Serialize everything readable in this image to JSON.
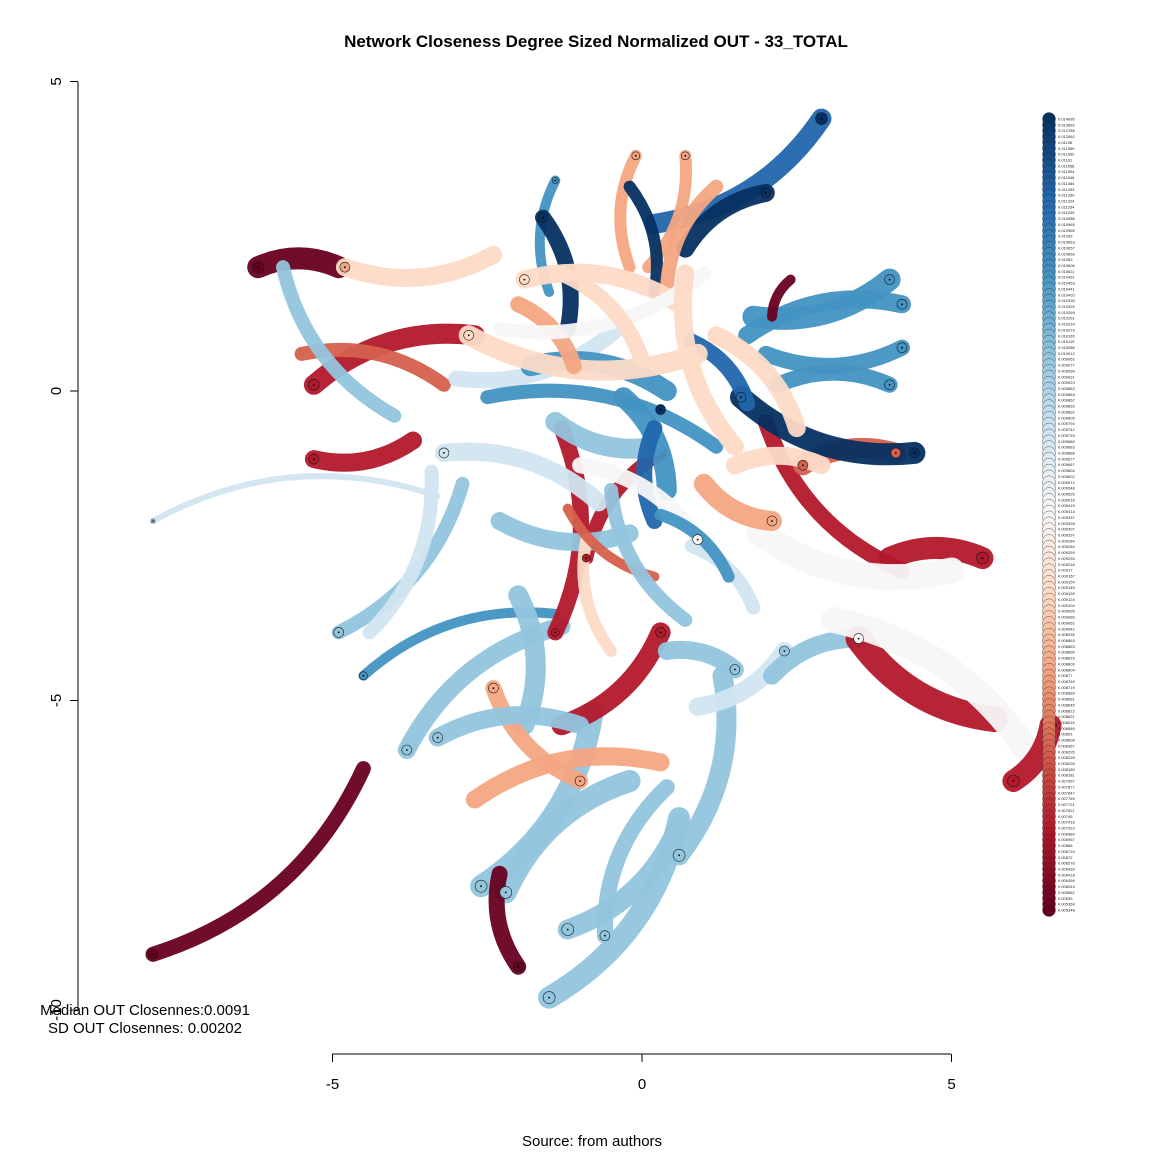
{
  "chart_data": {
    "type": "network",
    "title": "Network Closeness Degree Sized Normalized OUT - 33_TOTAL",
    "caption": "Source: from authors",
    "stats": {
      "median_line": "Median OUT Closennes:0.0091",
      "sd_line": "SD OUT Closennes: 0.00202"
    },
    "x_axis": {
      "ticks": [
        -5,
        0,
        5
      ],
      "tick_labels": [
        "-5",
        "0",
        "5"
      ],
      "range": [
        -5,
        5
      ]
    },
    "y_axis": {
      "ticks": [
        5,
        0,
        -5,
        -10
      ],
      "tick_labels": [
        "5",
        "0",
        "-5",
        "-10"
      ],
      "range": [
        -10,
        5
      ]
    },
    "palette": [
      "#053061",
      "#2166ac",
      "#4393c3",
      "#92c5de",
      "#d1e5f0",
      "#f7f7f7",
      "#fddbc7",
      "#f4a582",
      "#d6604d",
      "#b2182b",
      "#67001f"
    ],
    "legend_values": [
      "0.014095",
      "0.013662",
      "0.012766",
      "0.012062",
      "0.01196",
      "0.011959",
      "0.011632",
      "0.01161",
      "0.011658",
      "0.011594",
      "0.011546",
      "0.011484",
      "0.011393",
      "0.011339",
      "0.011324",
      "0.011254",
      "0.011049",
      "0.010986",
      "0.010965",
      "0.010966",
      "0.01095",
      "0.010663",
      "0.010657",
      "0.010659",
      "0.01063",
      "0.010606",
      "0.010611",
      "0.010461",
      "0.010453",
      "0.010441",
      "0.010402",
      "0.010339",
      "0.010325",
      "0.010269",
      "0.010251",
      "0.010224",
      "0.010223",
      "0.010165",
      "0.010119",
      "0.010086",
      "0.010012",
      "0.009952",
      "0.009977",
      "0.009934",
      "0.009931",
      "0.009923",
      "0.009883",
      "0.009883",
      "0.009862",
      "0.009833",
      "0.009832",
      "0.009805",
      "0.009794",
      "0.009742",
      "0.009733",
      "0.009685",
      "0.009683",
      "0.009688",
      "0.009677",
      "0.009667",
      "0.009604",
      "0.009602",
      "0.009572",
      "0.009548",
      "0.009525",
      "0.009516",
      "0.009415",
      "0.009414",
      "0.009337",
      "0.009328",
      "0.009307",
      "0.009297",
      "0.009284",
      "0.009284",
      "0.009259",
      "0.009239",
      "0.009216",
      "0.00917",
      "0.009167",
      "0.009154",
      "0.009145",
      "0.009128",
      "0.009124",
      "0.009104",
      "0.009095",
      "0.009089",
      "0.009062",
      "0.009042",
      "0.008935",
      "0.008863",
      "0.008863",
      "0.008856",
      "0.008815",
      "0.008809",
      "0.008804",
      "0.00877",
      "0.008769",
      "0.008719",
      "0.008689",
      "0.008681",
      "0.008645",
      "0.008622",
      "0.008621",
      "0.008616",
      "0.008589",
      "0.00851",
      "0.008508",
      "0.008367",
      "0.008295",
      "0.008228",
      "0.008226",
      "0.008189",
      "0.008181",
      "0.007967",
      "0.007877",
      "0.007847",
      "0.007769",
      "0.007721",
      "0.007521",
      "0.00745",
      "0.007418",
      "0.007322",
      "0.006984",
      "0.006967",
      "0.00686",
      "0.006724",
      "0.00672",
      "0.006578",
      "0.006439",
      "0.006418",
      "0.006399",
      "0.006044",
      "0.005962",
      "0.00539",
      "0.005369",
      "0.005348"
    ],
    "edges": [
      {
        "x1": -7.9,
        "y1": -9.1,
        "x2": -4.5,
        "y2": -6.1,
        "c": 10,
        "w": 15
      },
      {
        "x1": -6.2,
        "y1": 2.0,
        "x2": -4.9,
        "y2": 2.0,
        "c": 10,
        "w": 22
      },
      {
        "x1": -4.8,
        "y1": 2.0,
        "x2": -2.4,
        "y2": 2.2,
        "c": 6,
        "w": 18
      },
      {
        "x1": -5.3,
        "y1": 0.1,
        "x2": -2.7,
        "y2": 0.9,
        "c": 9,
        "w": 20
      },
      {
        "x1": -5.3,
        "y1": -1.1,
        "x2": -3.7,
        "y2": -0.8,
        "c": 9,
        "w": 18
      },
      {
        "x1": -5.5,
        "y1": 0.6,
        "x2": -3.2,
        "y2": 0.1,
        "c": 8,
        "w": 14
      },
      {
        "x1": -5.8,
        "y1": 2.0,
        "x2": -4.0,
        "y2": -0.4,
        "c": 3,
        "w": 14
      },
      {
        "x1": -7.9,
        "y1": -2.1,
        "x2": -3.3,
        "y2": -1.7,
        "c": 4,
        "w": 6
      },
      {
        "x1": -4.9,
        "y1": -3.9,
        "x2": -2.9,
        "y2": -1.5,
        "c": 3,
        "w": 14
      },
      {
        "x1": -4.5,
        "y1": -4.6,
        "x2": -1.4,
        "y2": -3.6,
        "c": 2,
        "w": 10
      },
      {
        "x1": -4.4,
        "y1": -3.9,
        "x2": -3.4,
        "y2": -1.3,
        "c": 4,
        "w": 14
      },
      {
        "x1": -3.8,
        "y1": -5.8,
        "x2": -1.3,
        "y2": -3.8,
        "c": 3,
        "w": 18
      },
      {
        "x1": -2.6,
        "y1": -8.0,
        "x2": -0.8,
        "y2": -5.2,
        "c": 3,
        "w": 22
      },
      {
        "x1": -2.2,
        "y1": -8.1,
        "x2": -0.2,
        "y2": -6.3,
        "c": 3,
        "w": 22
      },
      {
        "x1": -1.5,
        "y1": -9.8,
        "x2": 0.6,
        "y2": -6.9,
        "c": 3,
        "w": 22
      },
      {
        "x1": -2.0,
        "y1": -9.3,
        "x2": -2.3,
        "y2": -7.8,
        "c": 10,
        "w": 16
      },
      {
        "x1": -1.2,
        "y1": -8.7,
        "x2": 0.6,
        "y2": -7.0,
        "c": 3,
        "w": 20
      },
      {
        "x1": -0.6,
        "y1": -8.8,
        "x2": 0.4,
        "y2": -6.4,
        "c": 3,
        "w": 16
      },
      {
        "x1": 0.6,
        "y1": -7.5,
        "x2": 1.3,
        "y2": -4.6,
        "c": 3,
        "w": 20
      },
      {
        "x1": -2.7,
        "y1": -6.6,
        "x2": 0.3,
        "y2": -6.0,
        "c": 7,
        "w": 18
      },
      {
        "x1": -1.4,
        "y1": -3.9,
        "x2": -1.3,
        "y2": -0.6,
        "c": 9,
        "w": 16
      },
      {
        "x1": -0.9,
        "y1": -2.7,
        "x2": 0.3,
        "y2": -1.0,
        "c": 9,
        "w": 14
      },
      {
        "x1": -1.3,
        "y1": -5.4,
        "x2": 0.3,
        "y2": -3.9,
        "c": 9,
        "w": 20
      },
      {
        "x1": 0.4,
        "y1": -4.2,
        "x2": 1.5,
        "y2": -4.5,
        "c": 3,
        "w": 18
      },
      {
        "x1": 0.9,
        "y1": -5.1,
        "x2": 2.3,
        "y2": -4.2,
        "c": 4,
        "w": 18
      },
      {
        "x1": 2.1,
        "y1": -4.6,
        "x2": 3.5,
        "y2": -4.0,
        "c": 3,
        "w": 18
      },
      {
        "x1": 3.5,
        "y1": -4.0,
        "x2": 5.7,
        "y2": -5.3,
        "c": 9,
        "w": 26
      },
      {
        "x1": 3.1,
        "y1": -3.7,
        "x2": 6.4,
        "y2": -6.1,
        "c": 5,
        "w": 26
      },
      {
        "x1": 6.0,
        "y1": -6.3,
        "x2": 6.6,
        "y2": -5.4,
        "c": 9,
        "w": 22
      },
      {
        "x1": 4.0,
        "y1": -2.7,
        "x2": 5.5,
        "y2": -2.7,
        "c": 9,
        "w": 22
      },
      {
        "x1": 2.0,
        "y1": -0.5,
        "x2": 4.2,
        "y2": -2.9,
        "c": 9,
        "w": 16
      },
      {
        "x1": 2.6,
        "y1": -1.2,
        "x2": 4.1,
        "y2": -1.0,
        "c": 8,
        "w": 20
      },
      {
        "x1": 1.9,
        "y1": -2.3,
        "x2": 5.0,
        "y2": -2.9,
        "c": 5,
        "w": 26
      },
      {
        "x1": 2.9,
        "y1": 4.4,
        "x2": 0.2,
        "y2": 2.7,
        "c": 1,
        "w": 20
      },
      {
        "x1": 2.0,
        "y1": 3.2,
        "x2": 0.7,
        "y2": 2.3,
        "c": 0,
        "w": 18
      },
      {
        "x1": 0.7,
        "y1": 3.8,
        "x2": 0.1,
        "y2": 2.0,
        "c": 7,
        "w": 12
      },
      {
        "x1": -0.1,
        "y1": 3.8,
        "x2": -0.2,
        "y2": 2.0,
        "c": 7,
        "w": 12
      },
      {
        "x1": -0.2,
        "y1": 3.3,
        "x2": 0.2,
        "y2": 1.6,
        "c": 0,
        "w": 12
      },
      {
        "x1": -1.4,
        "y1": 3.4,
        "x2": -1.5,
        "y2": 1.6,
        "c": 2,
        "w": 10
      },
      {
        "x1": -1.6,
        "y1": 2.8,
        "x2": -1.2,
        "y2": 1.0,
        "c": 0,
        "w": 16
      },
      {
        "x1": 1.2,
        "y1": 3.3,
        "x2": 0.4,
        "y2": 1.6,
        "c": 7,
        "w": 14
      },
      {
        "x1": 4.0,
        "y1": 1.8,
        "x2": 1.8,
        "y2": 1.2,
        "c": 2,
        "w": 22
      },
      {
        "x1": 4.2,
        "y1": 1.4,
        "x2": 1.7,
        "y2": 0.9,
        "c": 2,
        "w": 18
      },
      {
        "x1": 4.2,
        "y1": 0.7,
        "x2": 2.0,
        "y2": 0.6,
        "c": 2,
        "w": 16
      },
      {
        "x1": 4.0,
        "y1": 0.1,
        "x2": 2.2,
        "y2": 0.1,
        "c": 2,
        "w": 16
      },
      {
        "x1": 4.4,
        "y1": -1.0,
        "x2": 1.6,
        "y2": -0.1,
        "c": 0,
        "w": 22
      },
      {
        "x1": 2.4,
        "y1": 1.8,
        "x2": 2.1,
        "y2": 1.2,
        "c": 10,
        "w": 10
      },
      {
        "x1": 0.8,
        "y1": 0.8,
        "x2": 1.7,
        "y2": -0.2,
        "c": 1,
        "w": 16
      },
      {
        "x1": -3.0,
        "y1": 0.2,
        "x2": -0.4,
        "y2": 1.0,
        "c": 4,
        "w": 16
      },
      {
        "x1": -1.8,
        "y1": 0.4,
        "x2": 0.4,
        "y2": 0.0,
        "c": 2,
        "w": 20
      },
      {
        "x1": -1.4,
        "y1": -0.5,
        "x2": 0.2,
        "y2": -0.9,
        "c": 3,
        "w": 20
      },
      {
        "x1": -0.3,
        "y1": -0.1,
        "x2": 0.4,
        "y2": -1.6,
        "c": 2,
        "w": 20
      },
      {
        "x1": 0.2,
        "y1": -0.6,
        "x2": 0.2,
        "y2": -2.1,
        "c": 1,
        "w": 16
      },
      {
        "x1": -2.5,
        "y1": -0.1,
        "x2": 1.2,
        "y2": -0.9,
        "c": 2,
        "w": 14
      },
      {
        "x1": -2.8,
        "y1": 0.9,
        "x2": 0.9,
        "y2": 0.6,
        "c": 6,
        "w": 20
      },
      {
        "x1": -1.9,
        "y1": 1.8,
        "x2": 0.6,
        "y2": 1.4,
        "c": 6,
        "w": 18
      },
      {
        "x1": -1.1,
        "y1": 0.4,
        "x2": -2.0,
        "y2": 1.4,
        "c": 7,
        "w": 16
      },
      {
        "x1": -3.2,
        "y1": -1.0,
        "x2": -0.7,
        "y2": -1.8,
        "c": 4,
        "w": 18
      },
      {
        "x1": -2.3,
        "y1": -2.1,
        "x2": -0.2,
        "y2": -2.3,
        "c": 3,
        "w": 18
      },
      {
        "x1": -1.0,
        "y1": -1.2,
        "x2": 0.9,
        "y2": -2.4,
        "c": 5,
        "w": 16
      },
      {
        "x1": 1.0,
        "y1": -1.5,
        "x2": 2.1,
        "y2": -2.1,
        "c": 7,
        "w": 20
      },
      {
        "x1": 1.5,
        "y1": -1.2,
        "x2": 2.9,
        "y2": -1.2,
        "c": 6,
        "w": 18
      },
      {
        "x1": -0.9,
        "y1": -2.4,
        "x2": -0.5,
        "y2": -4.2,
        "c": 6,
        "w": 12
      },
      {
        "x1": -2.0,
        "y1": -3.3,
        "x2": -1.9,
        "y2": -5.4,
        "c": 3,
        "w": 20
      },
      {
        "x1": -2.4,
        "y1": -4.8,
        "x2": -1.0,
        "y2": -6.3,
        "c": 7,
        "w": 16
      },
      {
        "x1": -3.3,
        "y1": -5.6,
        "x2": -1.0,
        "y2": -5.4,
        "c": 3,
        "w": 18
      },
      {
        "x1": -2.3,
        "y1": 1.0,
        "x2": 1.0,
        "y2": 1.9,
        "c": 5,
        "w": 14
      },
      {
        "x1": -1.3,
        "y1": 1.9,
        "x2": 0.0,
        "y2": 0.5,
        "c": 6,
        "w": 16
      },
      {
        "x1": 0.7,
        "y1": 1.9,
        "x2": 1.5,
        "y2": -0.9,
        "c": 6,
        "w": 18
      },
      {
        "x1": 1.2,
        "y1": 0.9,
        "x2": 2.5,
        "y2": -0.6,
        "c": 6,
        "w": 18
      },
      {
        "x1": -1.2,
        "y1": -1.9,
        "x2": 0.2,
        "y2": -3.0,
        "c": 8,
        "w": 10
      },
      {
        "x1": 0.8,
        "y1": -2.5,
        "x2": 1.8,
        "y2": -3.5,
        "c": 4,
        "w": 14
      },
      {
        "x1": -0.5,
        "y1": -1.6,
        "x2": 0.7,
        "y2": -3.7,
        "c": 3,
        "w": 14
      },
      {
        "x1": 0.3,
        "y1": -2.0,
        "x2": 1.4,
        "y2": -3.0,
        "c": 2,
        "w": 12
      }
    ],
    "nodes": [
      {
        "x": -7.9,
        "y": -9.1,
        "c": 10,
        "s": 10
      },
      {
        "x": -6.2,
        "y": 2.0,
        "c": 10,
        "s": 12
      },
      {
        "x": -4.8,
        "y": 2.0,
        "c": 7,
        "s": 10
      },
      {
        "x": -5.3,
        "y": 0.1,
        "c": 9,
        "s": 11
      },
      {
        "x": -5.3,
        "y": -1.1,
        "c": 9,
        "s": 10
      },
      {
        "x": -7.9,
        "y": -2.1,
        "c": 4,
        "s": 4
      },
      {
        "x": -4.9,
        "y": -3.9,
        "c": 3,
        "s": 10
      },
      {
        "x": -4.5,
        "y": -4.6,
        "c": 2,
        "s": 8
      },
      {
        "x": -3.8,
        "y": -5.8,
        "c": 3,
        "s": 10
      },
      {
        "x": -2.6,
        "y": -8.0,
        "c": 3,
        "s": 12
      },
      {
        "x": -2.2,
        "y": -8.1,
        "c": 3,
        "s": 12
      },
      {
        "x": -1.5,
        "y": -9.8,
        "c": 3,
        "s": 12
      },
      {
        "x": -2.0,
        "y": -9.3,
        "c": 10,
        "s": 10
      },
      {
        "x": -1.2,
        "y": -8.7,
        "c": 3,
        "s": 12
      },
      {
        "x": -0.6,
        "y": -8.8,
        "c": 3,
        "s": 10
      },
      {
        "x": 0.6,
        "y": -7.5,
        "c": 3,
        "s": 12
      },
      {
        "x": 2.9,
        "y": 4.4,
        "c": 0,
        "s": 12
      },
      {
        "x": 2.0,
        "y": 3.2,
        "c": 0,
        "s": 10
      },
      {
        "x": 0.7,
        "y": 3.8,
        "c": 7,
        "s": 8
      },
      {
        "x": -0.1,
        "y": 3.8,
        "c": 7,
        "s": 8
      },
      {
        "x": -1.4,
        "y": 3.4,
        "c": 2,
        "s": 6
      },
      {
        "x": -1.6,
        "y": 2.8,
        "c": 0,
        "s": 10
      },
      {
        "x": 4.0,
        "y": 1.8,
        "c": 2,
        "s": 10
      },
      {
        "x": 4.2,
        "y": 1.4,
        "c": 2,
        "s": 10
      },
      {
        "x": 4.2,
        "y": 0.7,
        "c": 2,
        "s": 10
      },
      {
        "x": 4.0,
        "y": 0.1,
        "c": 2,
        "s": 10
      },
      {
        "x": 4.4,
        "y": -1.0,
        "c": 0,
        "s": 10
      },
      {
        "x": 5.5,
        "y": -2.7,
        "c": 9,
        "s": 12
      },
      {
        "x": 6.6,
        "y": -5.4,
        "c": 9,
        "s": 12
      },
      {
        "x": 6.0,
        "y": -6.3,
        "c": 9,
        "s": 12
      },
      {
        "x": 3.5,
        "y": -4.0,
        "c": 5,
        "s": 10
      },
      {
        "x": 2.3,
        "y": -4.2,
        "c": 3,
        "s": 10
      },
      {
        "x": 1.5,
        "y": -4.5,
        "c": 3,
        "s": 10
      },
      {
        "x": 0.3,
        "y": -0.3,
        "c": 0,
        "s": 10
      },
      {
        "x": -1.4,
        "y": -3.9,
        "c": 9,
        "s": 8
      },
      {
        "x": 0.3,
        "y": -3.9,
        "c": 9,
        "s": 10
      },
      {
        "x": -2.8,
        "y": 0.9,
        "c": 6,
        "s": 10
      },
      {
        "x": -3.2,
        "y": -1.0,
        "c": 4,
        "s": 10
      },
      {
        "x": -1.9,
        "y": 1.8,
        "c": 6,
        "s": 10
      },
      {
        "x": -0.9,
        "y": -2.7,
        "c": 9,
        "s": 8
      },
      {
        "x": 1.6,
        "y": -0.1,
        "c": 1,
        "s": 10
      },
      {
        "x": 2.6,
        "y": -1.2,
        "c": 8,
        "s": 10
      },
      {
        "x": 4.1,
        "y": -1.0,
        "c": 8,
        "s": 10
      },
      {
        "x": -3.3,
        "y": -5.6,
        "c": 3,
        "s": 10
      },
      {
        "x": -2.4,
        "y": -4.8,
        "c": 7,
        "s": 10
      },
      {
        "x": -1.0,
        "y": -6.3,
        "c": 7,
        "s": 10
      },
      {
        "x": 0.9,
        "y": -2.4,
        "c": 5,
        "s": 10
      },
      {
        "x": 2.1,
        "y": -2.1,
        "c": 7,
        "s": 10
      }
    ]
  }
}
